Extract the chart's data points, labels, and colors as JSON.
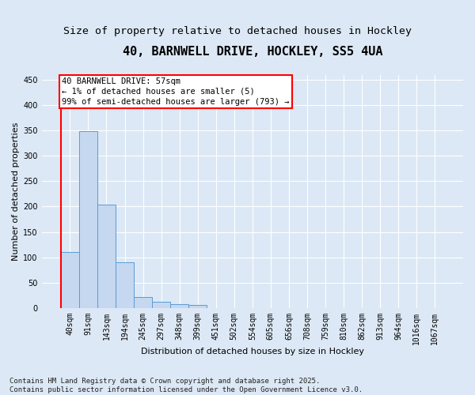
{
  "title": "40, BARNWELL DRIVE, HOCKLEY, SS5 4UA",
  "subtitle": "Size of property relative to detached houses in Hockley",
  "xlabel": "Distribution of detached houses by size in Hockley",
  "ylabel": "Number of detached properties",
  "bar_color": "#c5d8f0",
  "bar_edge_color": "#5b9bd5",
  "background_color": "#dce8f5",
  "grid_color": "#ffffff",
  "categories": [
    "40sqm",
    "91sqm",
    "143sqm",
    "194sqm",
    "245sqm",
    "297sqm",
    "348sqm",
    "399sqm",
    "451sqm",
    "502sqm",
    "554sqm",
    "605sqm",
    "656sqm",
    "708sqm",
    "759sqm",
    "810sqm",
    "862sqm",
    "913sqm",
    "964sqm",
    "1016sqm",
    "1067sqm"
  ],
  "values": [
    110,
    348,
    204,
    90,
    22,
    13,
    8,
    6,
    0,
    0,
    0,
    0,
    0,
    0,
    0,
    0,
    0,
    0,
    0,
    0,
    0
  ],
  "annotation_text": "40 BARNWELL DRIVE: 57sqm\n← 1% of detached houses are smaller (5)\n99% of semi-detached houses are larger (793) →",
  "ylim": [
    0,
    460
  ],
  "yticks": [
    0,
    50,
    100,
    150,
    200,
    250,
    300,
    350,
    400,
    450
  ],
  "footnote": "Contains HM Land Registry data © Crown copyright and database right 2025.\nContains public sector information licensed under the Open Government Licence v3.0.",
  "title_fontsize": 11,
  "subtitle_fontsize": 9.5,
  "xlabel_fontsize": 8,
  "ylabel_fontsize": 8,
  "tick_fontsize": 7,
  "annotation_fontsize": 7.5,
  "footnote_fontsize": 6.5
}
